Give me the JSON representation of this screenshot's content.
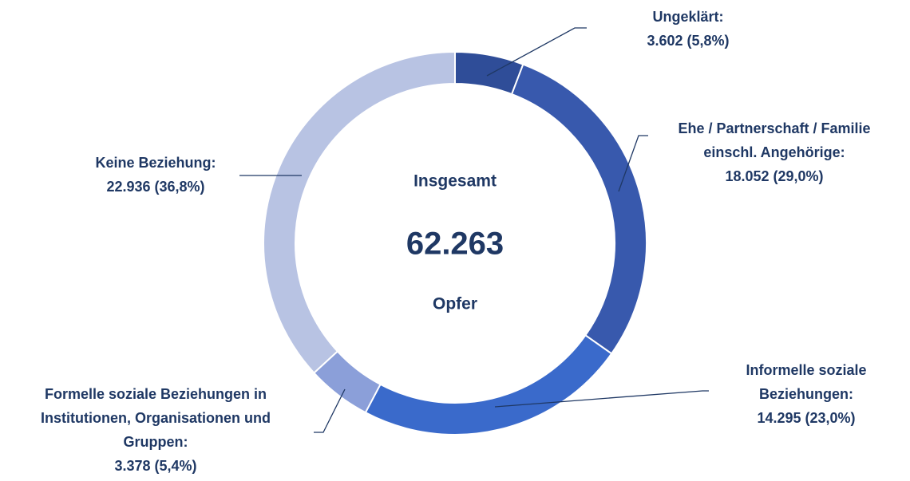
{
  "chart_data": {
    "type": "donut",
    "categories": [
      [
        "Ungeklärt:"
      ],
      [
        "Ehe / Partnerschaft / Familie",
        "einschl. Angehörige:"
      ],
      [
        "Informelle soziale",
        "Beziehungen:"
      ],
      [
        "Formelle soziale Beziehungen in",
        "Institutionen, Organisationen und",
        "Gruppen:"
      ],
      [
        "Keine Beziehung:"
      ]
    ],
    "values": [
      3602,
      18052,
      14295,
      3378,
      22936
    ],
    "value_labels": [
      "3.602 (5,8%)",
      "18.052 (29,0%)",
      "14.295 (23,0%)",
      "3.378 (5,4%)",
      "22.936 (36,8%)"
    ],
    "colors": [
      "#2f4d98",
      "#3859ad",
      "#3a6acb",
      "#8b9fd9",
      "#b8c3e3"
    ],
    "center": {
      "title": "Insgesamt",
      "total": {
        "value": 62263,
        "label": "62.263"
      },
      "unit": "Opfer"
    }
  }
}
